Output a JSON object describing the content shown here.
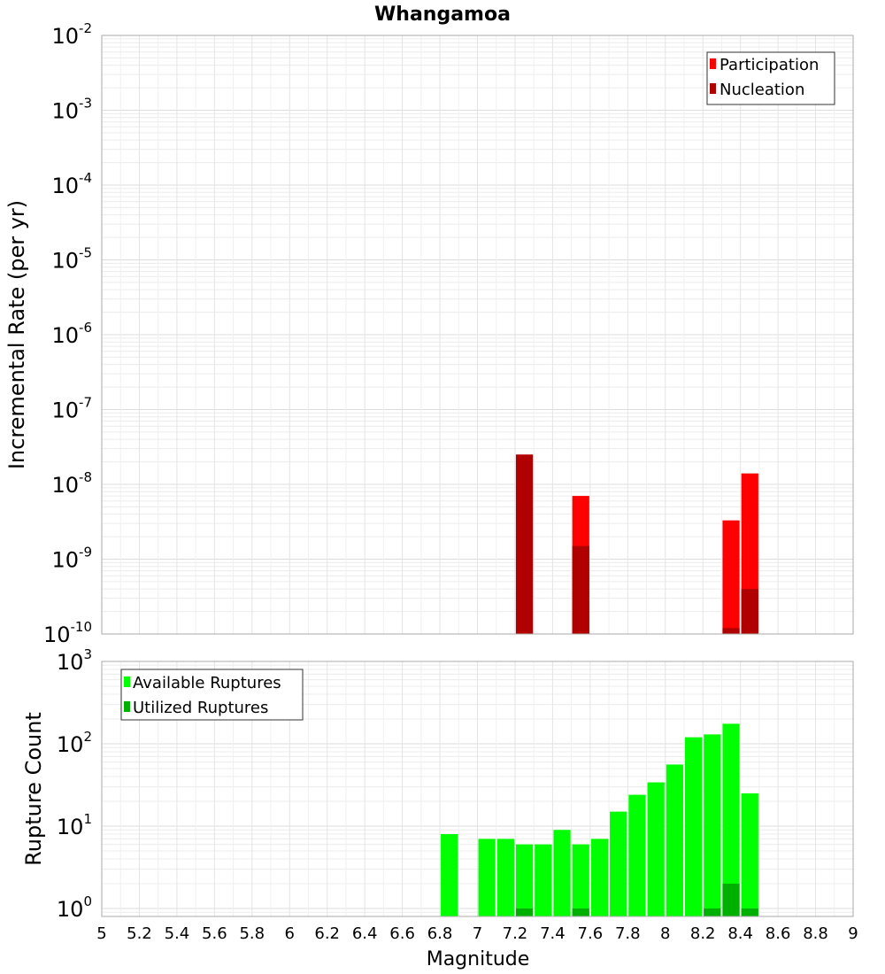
{
  "chart_data": [
    {
      "type": "bar",
      "title": "Whangamoa",
      "ylabel": "Incremental Rate (per yr)",
      "xlabel": "",
      "yscale": "log",
      "ylim": [
        1e-10,
        0.01
      ],
      "xlim": [
        5,
        9
      ],
      "grid": true,
      "legend_position": "top-right",
      "y_tick_labels": [
        {
          "base": "10",
          "exp": "-2",
          "value": 0.01
        },
        {
          "base": "10",
          "exp": "-3",
          "value": 0.001
        },
        {
          "base": "10",
          "exp": "-4",
          "value": 0.0001
        },
        {
          "base": "10",
          "exp": "-5",
          "value": 1e-05
        },
        {
          "base": "10",
          "exp": "-6",
          "value": 1e-06
        },
        {
          "base": "10",
          "exp": "-7",
          "value": 1e-07
        },
        {
          "base": "10",
          "exp": "-8",
          "value": 1e-08
        },
        {
          "base": "10",
          "exp": "-9",
          "value": 1e-09
        },
        {
          "base": "10",
          "exp": "-10",
          "value": 1e-10
        }
      ],
      "series": [
        {
          "name": "Participation",
          "color": "#ff0000",
          "x": [
            7.25,
            7.55,
            8.35,
            8.45
          ],
          "values": [
            2.5e-08,
            7e-09,
            3.3e-09,
            1.4e-08
          ]
        },
        {
          "name": "Nucleation",
          "color": "#b00000",
          "x": [
            7.25,
            7.55,
            8.35,
            8.45
          ],
          "values": [
            2.5e-08,
            1.5e-09,
            1.2e-10,
            4e-10
          ]
        }
      ]
    },
    {
      "type": "bar",
      "title": "",
      "ylabel": "Rupture Count",
      "xlabel": "Magnitude",
      "yscale": "log",
      "ylim": [
        0.8,
        1000
      ],
      "xlim": [
        5,
        9
      ],
      "grid": true,
      "legend_position": "top-left",
      "y_tick_labels": [
        {
          "base": "10",
          "exp": "3",
          "value": 1000
        },
        {
          "base": "10",
          "exp": "2",
          "value": 100
        },
        {
          "base": "10",
          "exp": "1",
          "value": 10
        },
        {
          "base": "10",
          "exp": "0",
          "value": 1
        }
      ],
      "x_tick_labels": [
        "5",
        "5.2",
        "5.4",
        "5.6",
        "5.8",
        "6",
        "6.2",
        "6.4",
        "6.6",
        "6.8",
        "7",
        "7.2",
        "7.4",
        "7.6",
        "7.8",
        "8",
        "8.2",
        "8.4",
        "8.6",
        "8.8",
        "9"
      ],
      "series": [
        {
          "name": "Available Ruptures",
          "color": "#00ff00",
          "x": [
            6.85,
            7.05,
            7.15,
            7.25,
            7.35,
            7.45,
            7.55,
            7.65,
            7.75,
            7.85,
            7.95,
            8.05,
            8.15,
            8.25,
            8.35,
            8.45
          ],
          "values": [
            8,
            7,
            7,
            6,
            6,
            9,
            6,
            7,
            15,
            24,
            34,
            56,
            120,
            130,
            175,
            25
          ]
        },
        {
          "name": "Utilized Ruptures",
          "color": "#00b000",
          "x": [
            7.25,
            7.55,
            8.25,
            8.35,
            8.45
          ],
          "values": [
            1,
            1,
            1,
            2,
            1
          ]
        }
      ]
    }
  ]
}
